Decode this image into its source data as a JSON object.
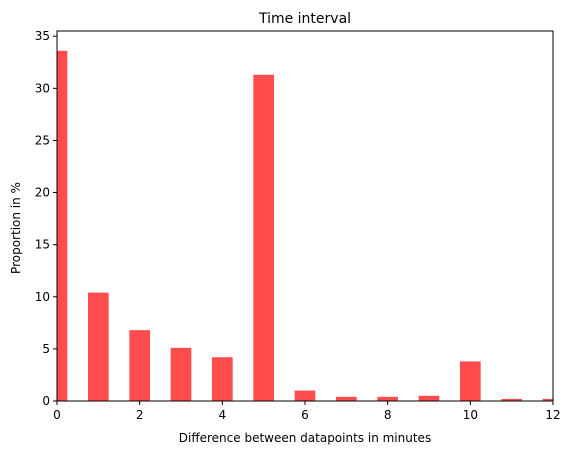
{
  "chart_data": {
    "type": "bar",
    "title": "Time interval",
    "xlabel": "Difference between datapoints in minutes",
    "ylabel": "Proportion in %",
    "xlim": [
      0,
      12
    ],
    "ylim": [
      0,
      35.5
    ],
    "xticks": [
      "0",
      "2",
      "4",
      "6",
      "8",
      "10",
      "12"
    ],
    "yticks": [
      "0",
      "5",
      "10",
      "15",
      "20",
      "25",
      "30",
      "35"
    ],
    "grid": false,
    "bar_color": "#ff4d4d",
    "x": [
      0,
      1,
      2,
      3,
      4,
      5,
      6,
      7,
      8,
      9,
      10,
      11,
      12
    ],
    "values": [
      33.6,
      10.4,
      6.8,
      5.1,
      4.2,
      31.3,
      1.0,
      0.4,
      0.4,
      0.5,
      3.8,
      0.2,
      0.2
    ]
  }
}
